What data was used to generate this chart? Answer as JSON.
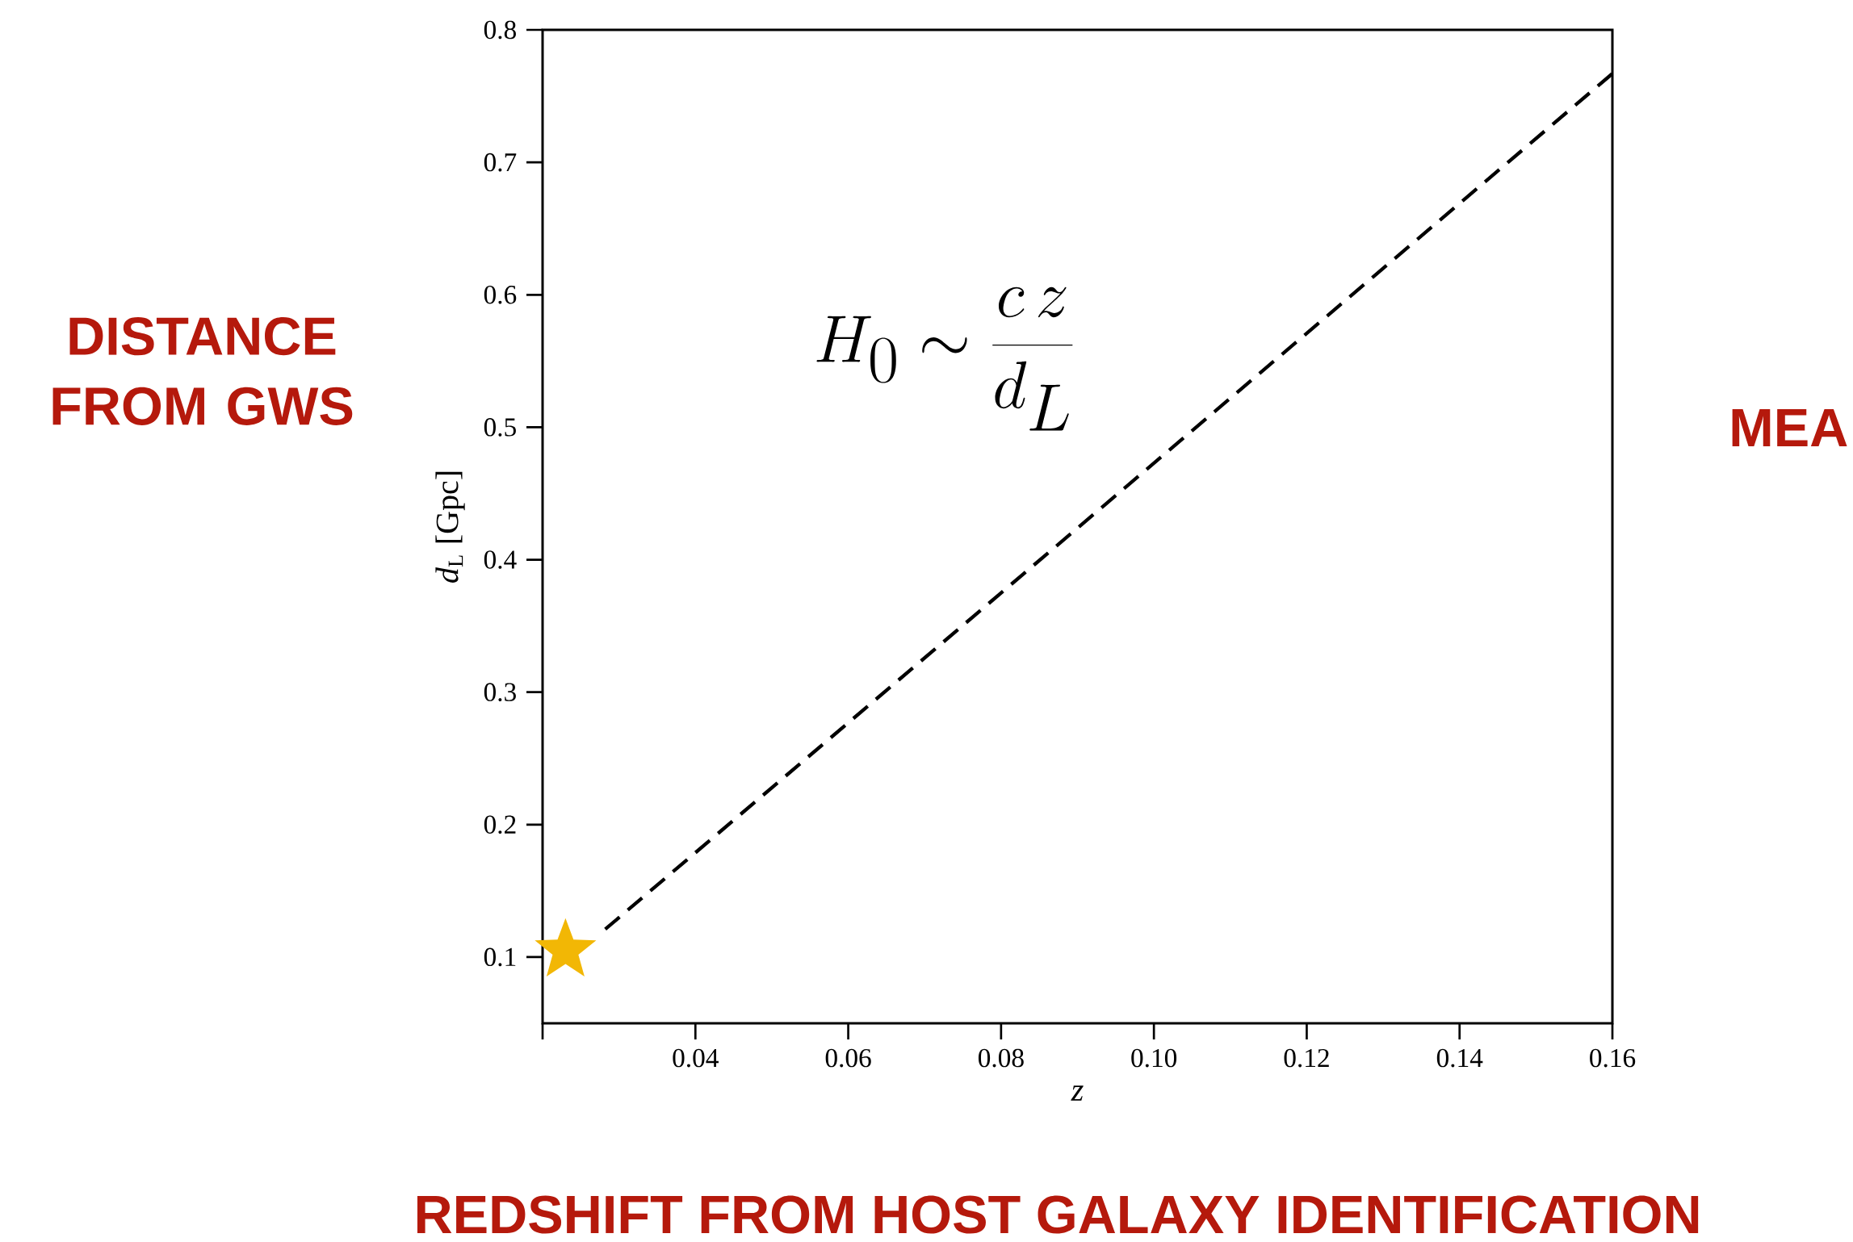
{
  "chart_data": {
    "type": "line",
    "xlabel": "z",
    "ylabel": "*d*$_{L}$ [Gpc]",
    "xlim": [
      0.02,
      0.16
    ],
    "ylim": [
      0.05,
      0.8
    ],
    "xticks": [
      {
        "value": 0.02,
        "label": null
      },
      0.04,
      0.06,
      0.08,
      {
        "value": 0.1,
        "label": "0.10"
      },
      0.12,
      0.14,
      0.16
    ],
    "yticks": [
      0.1,
      0.2,
      0.3,
      0.4,
      0.5,
      0.6,
      0.7,
      0.8
    ],
    "grid": false,
    "series": [
      {
        "color": "#000000",
        "line_style": "dashed",
        "marker": "none",
        "x": [
          0.0282,
          0.16
        ],
        "values": [
          0.121,
          0.767
        ]
      },
      {
        "type": "scatter",
        "color": "#f2b705",
        "marker": "star",
        "x": [
          0.023
        ],
        "values": [
          0.105
        ]
      }
    ],
    "annotations": [
      "H_0 \\sim \\frac{c\\,z}{d_L}",
      "DISTANCE FROM GWS",
      "REDSHIFT FROM HOST GALAXY IDENTIFICATION",
      "MEA"
    ]
  }
}
